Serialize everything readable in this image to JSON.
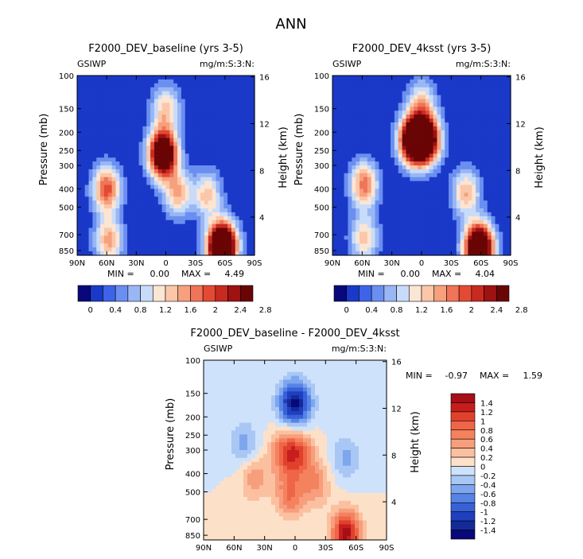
{
  "page_title": "ANN",
  "chart_data": [
    {
      "type": "heatmap",
      "title": "F2000_DEV_baseline (yrs 3-5)",
      "left_label": "GSIWP",
      "right_label": "mg/m:S:3:N:",
      "ylabel": "Pressure (mb)",
      "y2label": "Height (km)",
      "xticks": [
        "90N",
        "60N",
        "30N",
        "0",
        "30S",
        "60S",
        "90S"
      ],
      "yticks": [
        "100",
        "150",
        "200",
        "250",
        "300",
        "400",
        "500",
        "700",
        "850"
      ],
      "y2ticks": [
        "16",
        "12",
        "8",
        "4"
      ],
      "min_label": "MIN =",
      "min_value": "0.00",
      "max_label": "MAX =",
      "max_value": "4.49",
      "colorbar_labels": [
        "0",
        "0.4",
        "0.8",
        "1.2",
        "1.6",
        "2",
        "2.4",
        "2.8"
      ],
      "colors": [
        "#08087a",
        "#1a39c8",
        "#3d64e8",
        "#6a8ff0",
        "#9ab7f5",
        "#c8dcfa",
        "#fbe5d5",
        "#fbc7a8",
        "#f6a07d",
        "#ef7458",
        "#e34a33",
        "#c82a1f",
        "#9d1212",
        "#6a0505"
      ],
      "features": [
        {
          "lat": 60,
          "p": 400,
          "amp": 1.7
        },
        {
          "lat": 58,
          "p": 750,
          "amp": 1.3
        },
        {
          "lat": 3,
          "p": 260,
          "amp": 3.4
        },
        {
          "lat": 0,
          "p": 150,
          "amp": 1.1
        },
        {
          "lat": -12,
          "p": 420,
          "amp": 1.2
        },
        {
          "lat": -42,
          "p": 430,
          "amp": 1.1
        },
        {
          "lat": -57,
          "p": 810,
          "amp": 4.3
        }
      ]
    },
    {
      "type": "heatmap",
      "title": "F2000_DEV_4ksst (yrs 3-5)",
      "left_label": "GSIWP",
      "right_label": "mg/m:S:3:N:",
      "ylabel": "Pressure (mb)",
      "y2label": "Height (km)",
      "xticks": [
        "90N",
        "60N",
        "30N",
        "0",
        "30S",
        "60S",
        "90S"
      ],
      "yticks": [
        "100",
        "150",
        "200",
        "250",
        "300",
        "400",
        "500",
        "700",
        "850"
      ],
      "y2ticks": [
        "16",
        "12",
        "8",
        "4"
      ],
      "min_label": "MIN =",
      "min_value": "0.00",
      "max_label": "MAX =",
      "max_value": "4.04",
      "colorbar_labels": [
        "0",
        "0.4",
        "0.8",
        "1.2",
        "1.6",
        "2",
        "2.4",
        "2.8"
      ],
      "colors": [
        "#08087a",
        "#1a39c8",
        "#3d64e8",
        "#6a8ff0",
        "#9ab7f5",
        "#c8dcfa",
        "#fbe5d5",
        "#fbc7a8",
        "#f6a07d",
        "#ef7458",
        "#e34a33",
        "#c82a1f",
        "#9d1212",
        "#6a0505"
      ],
      "features": [
        {
          "lat": 58,
          "p": 380,
          "amp": 1.5
        },
        {
          "lat": 58,
          "p": 730,
          "amp": 1.1
        },
        {
          "lat": 8,
          "p": 220,
          "amp": 3.4
        },
        {
          "lat": -5,
          "p": 220,
          "amp": 2.8
        },
        {
          "lat": 0,
          "p": 140,
          "amp": 1.0
        },
        {
          "lat": -45,
          "p": 420,
          "amp": 1.2
        },
        {
          "lat": -58,
          "p": 820,
          "amp": 3.8
        }
      ]
    },
    {
      "type": "heatmap",
      "title": "F2000_DEV_baseline - F2000_DEV_4ksst",
      "left_label": "GSIWP",
      "right_label": "mg/m:S:3:N:",
      "ylabel": "Pressure (mb)",
      "y2label": "Height (km)",
      "xticks": [
        "90N",
        "60N",
        "30N",
        "0",
        "30S",
        "60S",
        "90S"
      ],
      "yticks": [
        "100",
        "150",
        "200",
        "250",
        "300",
        "400",
        "500",
        "700",
        "850"
      ],
      "y2ticks": [
        "16",
        "12",
        "8",
        "4"
      ],
      "min_label": "MIN =",
      "min_value": "-0.97",
      "max_label": "MAX =",
      "max_value": "1.59",
      "colorbar_labels": [
        "1.4",
        "1.2",
        "1",
        "0.8",
        "0.6",
        "0.4",
        "0.2",
        "0",
        "-0.2",
        "-0.4",
        "-0.6",
        "-0.8",
        "-1",
        "-1.2",
        "-1.4"
      ],
      "colors": [
        "#a50f15",
        "#c81d1d",
        "#e0412c",
        "#ef6548",
        "#f4825f",
        "#f79e7d",
        "#fbc09f",
        "#fde0c8",
        "#cfe2fb",
        "#a9c7f5",
        "#7ea6ef",
        "#5683e6",
        "#3861d8",
        "#1f3fc0",
        "#142a98",
        "#08087a"
      ],
      "features": [
        {
          "lat": 40,
          "p": 420,
          "amp": 0.55
        },
        {
          "lat": 10,
          "p": 310,
          "amp": 0.9
        },
        {
          "lat": -5,
          "p": 310,
          "amp": 0.8
        },
        {
          "lat": 5,
          "p": 520,
          "amp": 0.8
        },
        {
          "lat": -20,
          "p": 450,
          "amp": 0.6
        },
        {
          "lat": -50,
          "p": 830,
          "amp": 1.5
        },
        {
          "lat": 5,
          "p": 170,
          "amp": -0.85
        },
        {
          "lat": -5,
          "p": 170,
          "amp": -0.8
        },
        {
          "lat": 50,
          "p": 280,
          "amp": -0.5
        },
        {
          "lat": -50,
          "p": 330,
          "amp": -0.45
        }
      ]
    }
  ]
}
